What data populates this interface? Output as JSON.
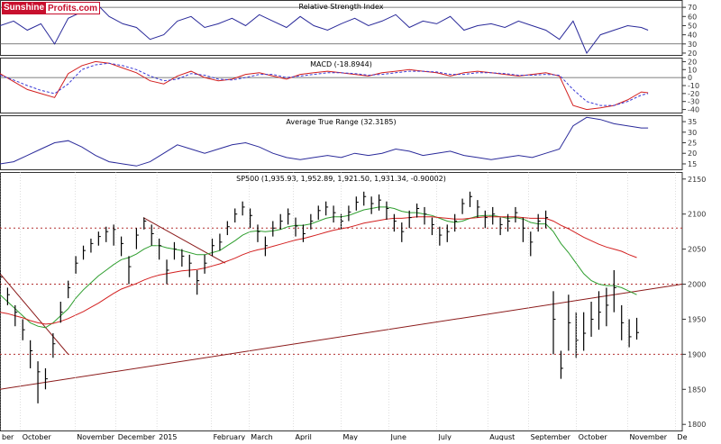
{
  "logo": {
    "part1": "Sunshine",
    "part2": "Profits.com"
  },
  "colors": {
    "price": "#000000",
    "sma_fast": "#2e9e2e",
    "sma_slow": "#d32020",
    "panel_line": "#2a2a9a",
    "signal_line": "#3a3ad6",
    "trend_line": "#8b1a1a",
    "dotted_level": "#b23030",
    "grid": "#c8c8c8",
    "frame": "#333333"
  },
  "chart_data": [
    {
      "panel": "rsi",
      "type": "line",
      "title": "Relative Strength Index",
      "yticks": [
        70,
        60,
        50,
        40,
        30,
        20
      ],
      "ylim": [
        17,
        78
      ],
      "reference_lines": [
        70,
        30
      ],
      "x": [
        0,
        2,
        4,
        6,
        8,
        10,
        12,
        14,
        16,
        18,
        20,
        22,
        24,
        26,
        28,
        30,
        32,
        34,
        36,
        38,
        40,
        42,
        44,
        46,
        48,
        50,
        52,
        54,
        56,
        58,
        60,
        62,
        64,
        66,
        68,
        70,
        72,
        74,
        76,
        78,
        80,
        82,
        84,
        86,
        88,
        90,
        92,
        94,
        95
      ],
      "series": [
        {
          "values": [
            50,
            55,
            45,
            52,
            30,
            58,
            65,
            75,
            60,
            52,
            48,
            35,
            40,
            55,
            60,
            48,
            52,
            58,
            50,
            62,
            55,
            48,
            60,
            50,
            45,
            52,
            58,
            50,
            55,
            62,
            48,
            55,
            52,
            60,
            45,
            50,
            52,
            48,
            55,
            50,
            45,
            35,
            55,
            20,
            40,
            45,
            50,
            48,
            45
          ]
        }
      ]
    },
    {
      "panel": "macd",
      "type": "line",
      "title": "MACD (-18.8944)",
      "yticks": [
        20,
        10,
        0,
        -10,
        -20,
        -30,
        -40
      ],
      "ylim": [
        -45,
        25
      ],
      "reference_lines": [
        0
      ],
      "x": [
        0,
        2,
        4,
        6,
        8,
        10,
        12,
        14,
        16,
        18,
        20,
        22,
        24,
        26,
        28,
        30,
        32,
        34,
        36,
        38,
        40,
        42,
        44,
        46,
        48,
        50,
        52,
        54,
        56,
        58,
        60,
        62,
        64,
        66,
        68,
        70,
        72,
        74,
        76,
        78,
        80,
        82,
        84,
        86,
        88,
        90,
        92,
        94,
        95
      ],
      "series": [
        {
          "values": [
            5,
            -5,
            -15,
            -20,
            -25,
            5,
            15,
            20,
            18,
            12,
            6,
            -4,
            -8,
            2,
            8,
            0,
            -4,
            -2,
            4,
            6,
            2,
            -2,
            4,
            6,
            8,
            6,
            4,
            2,
            6,
            8,
            10,
            8,
            6,
            2,
            6,
            8,
            6,
            4,
            2,
            4,
            6,
            2,
            -35,
            -40,
            -38,
            -35,
            -28,
            -18,
            -19
          ]
        },
        {
          "values": [
            3,
            -3,
            -10,
            -16,
            -20,
            -8,
            10,
            16,
            18,
            15,
            10,
            2,
            -4,
            -2,
            5,
            3,
            -2,
            -3,
            0,
            4,
            4,
            0,
            2,
            4,
            6,
            6,
            5,
            3,
            4,
            6,
            8,
            8,
            7,
            4,
            4,
            6,
            6,
            5,
            3,
            3,
            4,
            3,
            -15,
            -30,
            -35,
            -35,
            -30,
            -22,
            -20
          ]
        }
      ]
    },
    {
      "panel": "atr",
      "type": "line",
      "title": "Average True Range (32.3185)",
      "yticks": [
        35,
        30,
        25,
        20,
        15
      ],
      "ylim": [
        12,
        38
      ],
      "x": [
        0,
        2,
        4,
        6,
        8,
        10,
        12,
        14,
        16,
        18,
        20,
        22,
        24,
        26,
        28,
        30,
        32,
        34,
        36,
        38,
        40,
        42,
        44,
        46,
        48,
        50,
        52,
        54,
        56,
        58,
        60,
        62,
        64,
        66,
        68,
        70,
        72,
        74,
        76,
        78,
        80,
        82,
        84,
        86,
        88,
        90,
        92,
        94,
        95
      ],
      "series": [
        {
          "values": [
            15,
            16,
            19,
            22,
            25,
            26,
            23,
            19,
            16,
            15,
            14,
            16,
            20,
            24,
            22,
            20,
            22,
            24,
            25,
            23,
            20,
            18,
            17,
            18,
            19,
            18,
            20,
            19,
            20,
            22,
            21,
            19,
            20,
            21,
            19,
            18,
            17,
            18,
            19,
            18,
            20,
            22,
            33,
            37,
            36,
            34,
            33,
            32,
            32
          ]
        }
      ]
    },
    {
      "panel": "price",
      "type": "candlestick",
      "title": "SP500 (1,935.93, 1,952.89, 1,921.50, 1,931.34, -0.90002)",
      "yticks": [
        2150,
        2100,
        2050,
        2000,
        1950,
        1900,
        1850,
        1800
      ],
      "ylim": [
        1790,
        2160
      ],
      "x_tick_labels": [
        "ber",
        "October",
        "November",
        "December",
        "2015",
        "February",
        "March",
        "April",
        "May",
        "June",
        "July",
        "August",
        "September",
        "October",
        "November",
        "De"
      ],
      "horizontal_levels": [
        2080,
        2000,
        1900
      ],
      "trend_line": {
        "from": [
          0,
          1850
        ],
        "to": [
          100,
          2000
        ]
      },
      "resistance_lines": [
        {
          "from": [
            0,
            2015
          ],
          "to": [
            10,
            1900
          ]
        },
        {
          "from": [
            21,
            2095
          ],
          "to": [
            33,
            2030
          ]
        }
      ],
      "x": [
        0,
        1,
        2,
        3,
        4,
        5,
        6,
        7,
        8,
        9,
        10,
        11,
        12,
        13,
        14,
        15,
        16,
        17,
        18,
        19,
        20,
        21,
        22,
        23,
        24,
        25,
        26,
        27,
        28,
        29,
        30,
        31,
        32,
        33,
        34,
        35,
        36,
        37,
        38,
        39,
        40,
        41,
        42,
        43,
        44,
        45,
        46,
        47,
        48,
        49,
        50,
        51,
        52,
        53,
        54,
        55,
        56,
        57,
        58,
        59,
        60,
        61,
        62,
        63,
        64,
        65,
        66,
        67,
        68,
        69,
        70,
        71,
        72,
        73,
        74,
        75,
        76,
        77,
        78,
        79,
        80,
        81,
        82,
        83,
        84
      ],
      "close": [
        2010,
        1985,
        1960,
        1935,
        1905,
        1875,
        1865,
        1915,
        1960,
        1995,
        2030,
        2048,
        2058,
        2068,
        2075,
        2078,
        2058,
        2025,
        2070,
        2090,
        2072,
        2055,
        2020,
        2050,
        2040,
        2030,
        2005,
        2030,
        2055,
        2060,
        2082,
        2100,
        2110,
        2098,
        2075,
        2055,
        2080,
        2090,
        2100,
        2083,
        2072,
        2090,
        2105,
        2110,
        2102,
        2090,
        2103,
        2117,
        2125,
        2115,
        2120,
        2108,
        2090,
        2075,
        2095,
        2108,
        2100,
        2085,
        2070,
        2075,
        2090,
        2115,
        2125,
        2110,
        2095,
        2100,
        2085,
        2090,
        2102,
        2080,
        2060,
        2090,
        2095,
        1950,
        1880,
        1945,
        1920,
        1930,
        1950,
        1960,
        1970,
        1995,
        1945,
        1925,
        1931
      ],
      "high": [
        2020,
        1995,
        1970,
        1950,
        1920,
        1890,
        1880,
        1930,
        1975,
        2005,
        2040,
        2055,
        2065,
        2075,
        2082,
        2085,
        2068,
        2040,
        2080,
        2095,
        2085,
        2065,
        2035,
        2060,
        2050,
        2042,
        2020,
        2042,
        2065,
        2072,
        2090,
        2108,
        2118,
        2108,
        2085,
        2068,
        2090,
        2100,
        2108,
        2095,
        2085,
        2100,
        2112,
        2118,
        2112,
        2100,
        2112,
        2125,
        2132,
        2125,
        2128,
        2118,
        2100,
        2088,
        2105,
        2115,
        2110,
        2095,
        2082,
        2085,
        2100,
        2122,
        2132,
        2120,
        2105,
        2110,
        2095,
        2100,
        2110,
        2095,
        2075,
        2100,
        2105,
        1990,
        1905,
        1985,
        1960,
        1960,
        1975,
        1990,
        1995,
        2020,
        1970,
        1950,
        1952
      ],
      "low": [
        1995,
        1970,
        1940,
        1920,
        1880,
        1830,
        1850,
        1895,
        1945,
        1980,
        2015,
        2035,
        2045,
        2055,
        2060,
        2055,
        2040,
        2000,
        2050,
        2078,
        2055,
        2035,
        2000,
        2035,
        2025,
        2010,
        1985,
        2015,
        2040,
        2048,
        2070,
        2088,
        2098,
        2080,
        2060,
        2040,
        2068,
        2078,
        2085,
        2068,
        2060,
        2078,
        2092,
        2098,
        2088,
        2078,
        2090,
        2105,
        2112,
        2100,
        2105,
        2092,
        2075,
        2060,
        2080,
        2095,
        2085,
        2070,
        2055,
        2060,
        2075,
        2100,
        2110,
        2095,
        2080,
        2085,
        2070,
        2075,
        2088,
        2060,
        2040,
        2075,
        2080,
        1900,
        1865,
        1905,
        1895,
        1905,
        1925,
        1935,
        1940,
        1960,
        1920,
        1910,
        1921
      ],
      "series": [
        {
          "name": "green",
          "values": [
            1985,
            1975,
            1965,
            1955,
            1945,
            1940,
            1938,
            1945,
            1955,
            1965,
            1980,
            1992,
            2002,
            2012,
            2020,
            2028,
            2035,
            2038,
            2043,
            2050,
            2055,
            2055,
            2052,
            2050,
            2048,
            2045,
            2042,
            2042,
            2045,
            2048,
            2055,
            2062,
            2070,
            2075,
            2076,
            2075,
            2076,
            2078,
            2082,
            2084,
            2084,
            2086,
            2090,
            2094,
            2096,
            2096,
            2098,
            2102,
            2106,
            2108,
            2110,
            2110,
            2108,
            2104,
            2102,
            2102,
            2100,
            2098,
            2094,
            2090,
            2088,
            2090,
            2094,
            2097,
            2098,
            2098,
            2096,
            2094,
            2095,
            2093,
            2088,
            2086,
            2086,
            2075,
            2058,
            2045,
            2030,
            2015,
            2005,
            2000,
            1998,
            1998,
            1995,
            1990,
            1985
          ]
        },
        {
          "name": "red",
          "values": [
            1960,
            1958,
            1955,
            1952,
            1948,
            1945,
            1943,
            1944,
            1947,
            1951,
            1956,
            1961,
            1967,
            1973,
            1980,
            1987,
            1993,
            1997,
            2001,
            2006,
            2010,
            2013,
            2015,
            2017,
            2019,
            2020,
            2021,
            2023,
            2026,
            2029,
            2033,
            2037,
            2042,
            2046,
            2049,
            2051,
            2054,
            2057,
            2060,
            2063,
            2065,
            2068,
            2071,
            2074,
            2077,
            2079,
            2081,
            2084,
            2087,
            2089,
            2091,
            2093,
            2094,
            2094,
            2095,
            2096,
            2096,
            2096,
            2095,
            2094,
            2093,
            2093,
            2094,
            2095,
            2096,
            2096,
            2096,
            2096,
            2096,
            2095,
            2094,
            2094,
            2094,
            2090,
            2084,
            2079,
            2073,
            2067,
            2062,
            2057,
            2053,
            2050,
            2047,
            2042,
            2038
          ]
        }
      ]
    }
  ]
}
